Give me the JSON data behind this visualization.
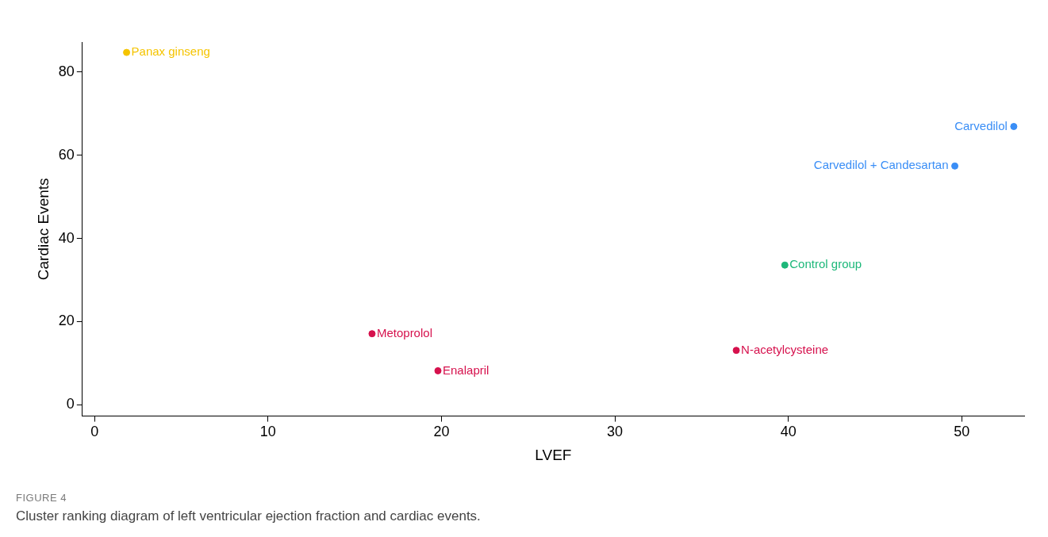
{
  "chart_data": {
    "type": "scatter",
    "xlabel": "LVEF",
    "ylabel": "Cardiac Events",
    "x": [
      1.85,
      53.0,
      49.6,
      39.8,
      37.0,
      16.0,
      19.8
    ],
    "values": [
      84.7,
      66.9,
      57.4,
      33.6,
      13.1,
      17.1,
      8.2
    ],
    "colors": [
      "#f5c400",
      "#3a8ef6",
      "#3a8ef6",
      "#1db87a",
      "#d6114d",
      "#d6114d",
      "#d6114d"
    ],
    "value_labels": [
      "Panax ginseng",
      "Carvedilol",
      "Carvedilol + Candesartan",
      "Control group",
      "N-acetylcysteine",
      "Metoprolol",
      "Enalapril"
    ],
    "marker": "circle",
    "xlim": [
      -0.7,
      53.6
    ],
    "xticks": [
      0,
      10,
      20,
      30,
      40,
      50
    ],
    "ylim": [
      -2.7,
      87.2
    ],
    "yticks": [
      0,
      20,
      40,
      60,
      80
    ],
    "grid": false,
    "legend": false,
    "annotations": [
      "FIGURE 4",
      "Cluster ranking diagram of left ventricular ejection fraction and cardiac events."
    ]
  }
}
